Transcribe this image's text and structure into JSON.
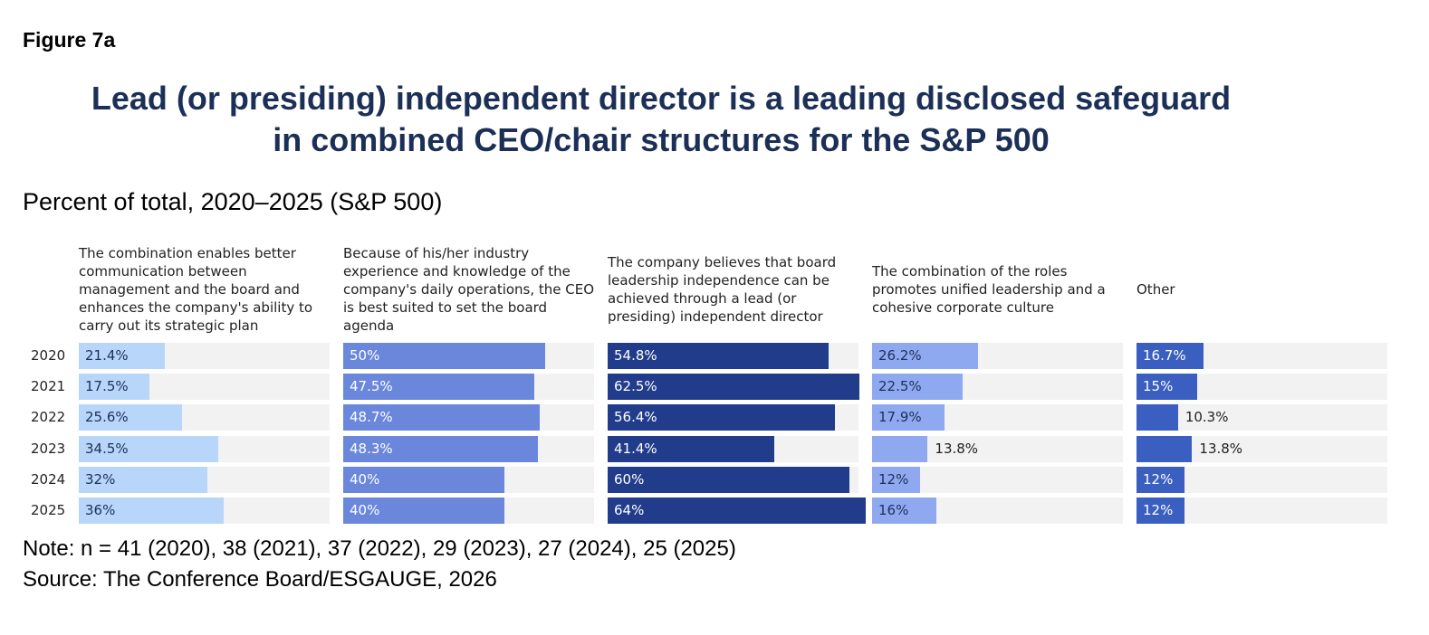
{
  "figure_label": "Figure 7a",
  "title_line1": "Lead (or presiding) independent director is a leading disclosed safeguard",
  "title_line2": "in combined CEO/chair structures for the S&P 500",
  "subtitle": "Percent of total, 2020–2025 (S&P 500)",
  "note": "Note: n = 41 (2020), 38 (2021), 37 (2022), 29 (2023), 27 (2024), 25 (2025)",
  "source": "Source: The Conference Board/ESGAUGE, 2026",
  "chart_data": {
    "type": "bar",
    "orientation": "horizontal",
    "categories": [
      "2020",
      "2021",
      "2022",
      "2023",
      "2024",
      "2025"
    ],
    "xlim": [
      0,
      64
    ],
    "series": [
      {
        "name": "The combination enables better communication between management and the board and enhances the company's ability to carry out its strategic plan",
        "values": [
          21.4,
          17.5,
          25.6,
          34.5,
          32,
          36
        ],
        "labels": [
          "21.4%",
          "17.5%",
          "25.6%",
          "34.5%",
          "32%",
          "36%"
        ],
        "color": "#b7d6fa",
        "label_color": "#1e2f5a"
      },
      {
        "name": "Because of his/her industry experience and knowledge of the company's daily operations, the CEO is best suited to set the board agenda",
        "values": [
          50,
          47.5,
          48.7,
          48.3,
          40,
          40
        ],
        "labels": [
          "50%",
          "47.5%",
          "48.7%",
          "48.3%",
          "40%",
          "40%"
        ],
        "color": "#6a87db",
        "label_color": "#ffffff"
      },
      {
        "name": "The company believes that board leadership independence can be achieved through a lead (or presiding) independent director",
        "values": [
          54.8,
          62.5,
          56.4,
          41.4,
          60,
          64
        ],
        "labels": [
          "54.8%",
          "62.5%",
          "56.4%",
          "41.4%",
          "60%",
          "64%"
        ],
        "color": "#213c8a",
        "label_color": "#ffffff"
      },
      {
        "name": "The combination of the roles promotes unified leadership and a cohesive corporate culture",
        "values": [
          26.2,
          22.5,
          17.9,
          13.8,
          12,
          16
        ],
        "labels": [
          "26.2%",
          "22.5%",
          "17.9%",
          "13.8%",
          "12%",
          "16%"
        ],
        "color": "#8fa9f0",
        "label_color": "#1e2f5a"
      },
      {
        "name": "Other",
        "values": [
          16.7,
          15,
          10.3,
          13.8,
          12,
          12
        ],
        "labels": [
          "16.7%",
          "15%",
          "10.3%",
          "13.8%",
          "12%",
          "12%"
        ],
        "color": "#3a5fc0",
        "label_color": "#ffffff"
      }
    ]
  }
}
